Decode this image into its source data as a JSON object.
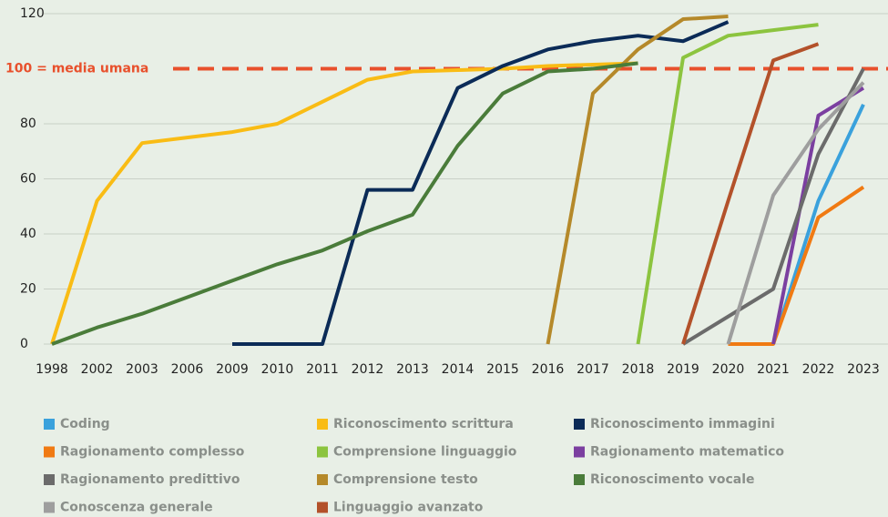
{
  "chart_data": {
    "type": "line",
    "categories": [
      "1998",
      "2002",
      "2003",
      "2006",
      "2009",
      "2010",
      "2011",
      "2012",
      "2013",
      "2014",
      "2015",
      "2016",
      "2017",
      "2018",
      "2019",
      "2020",
      "2021",
      "2022",
      "2023"
    ],
    "ylim": [
      0,
      120
    ],
    "yticks": [
      0,
      20,
      40,
      60,
      80,
      120
    ],
    "grid": true,
    "reference_line": {
      "value": 100,
      "label": "100 = media umana",
      "color": "#e8502c"
    },
    "legend": "bottom",
    "series": [
      {
        "name": "Coding",
        "color": "#3aa1dc",
        "values": [
          null,
          null,
          null,
          null,
          null,
          null,
          null,
          null,
          null,
          null,
          null,
          null,
          null,
          null,
          null,
          null,
          0,
          52,
          87
        ]
      },
      {
        "name": "Riconoscimento scrittura",
        "color": "#f9bc15",
        "values": [
          0,
          52,
          73,
          75,
          77,
          80,
          88,
          96,
          99,
          99.5,
          100,
          101,
          101.5,
          102,
          null,
          null,
          null,
          null,
          null
        ]
      },
      {
        "name": "Riconoscimento immagini",
        "color": "#0b2b57",
        "values": [
          null,
          null,
          null,
          null,
          0,
          0,
          0,
          56,
          56,
          93,
          101,
          107,
          110,
          112,
          110,
          117,
          null,
          null,
          null
        ]
      },
      {
        "name": "Ragionamento complesso",
        "color": "#f07a13",
        "values": [
          null,
          null,
          null,
          null,
          null,
          null,
          null,
          null,
          null,
          null,
          null,
          null,
          null,
          null,
          null,
          0,
          0,
          46,
          57
        ]
      },
      {
        "name": "Comprensione linguaggio",
        "color": "#8cc43f",
        "values": [
          null,
          null,
          null,
          null,
          null,
          null,
          null,
          null,
          null,
          null,
          null,
          null,
          null,
          0,
          104,
          112,
          114,
          116,
          null
        ]
      },
      {
        "name": "Ragionamento matematico",
        "color": "#7b3fa0",
        "values": [
          null,
          null,
          null,
          null,
          null,
          null,
          null,
          null,
          null,
          null,
          null,
          null,
          null,
          null,
          null,
          null,
          0,
          83,
          93
        ]
      },
      {
        "name": "Ragionamento predittivo",
        "color": "#6b6b6b",
        "values": [
          null,
          null,
          null,
          null,
          null,
          null,
          null,
          null,
          null,
          null,
          null,
          null,
          null,
          null,
          0,
          10,
          20,
          69,
          100
        ]
      },
      {
        "name": "Comprensione testo",
        "color": "#b5892a",
        "values": [
          null,
          null,
          null,
          null,
          null,
          null,
          null,
          null,
          null,
          null,
          null,
          0,
          91,
          107,
          118,
          119,
          null,
          null,
          null
        ]
      },
      {
        "name": "Riconoscimento vocale",
        "color": "#4a7c3a",
        "values": [
          0,
          6,
          11,
          17,
          23,
          29,
          34,
          41,
          47,
          72,
          91,
          99,
          100,
          102,
          null,
          null,
          null,
          null,
          null
        ]
      },
      {
        "name": "Conoscenza generale",
        "color": "#9e9e9e",
        "values": [
          null,
          null,
          null,
          null,
          null,
          null,
          null,
          null,
          null,
          null,
          null,
          null,
          null,
          null,
          null,
          0,
          54,
          78,
          95
        ]
      },
      {
        "name": "Linguaggio avanzato",
        "color": "#b3512a",
        "values": [
          null,
          null,
          null,
          null,
          null,
          null,
          null,
          null,
          null,
          null,
          null,
          null,
          null,
          null,
          0,
          52,
          103,
          109,
          null
        ]
      }
    ]
  }
}
